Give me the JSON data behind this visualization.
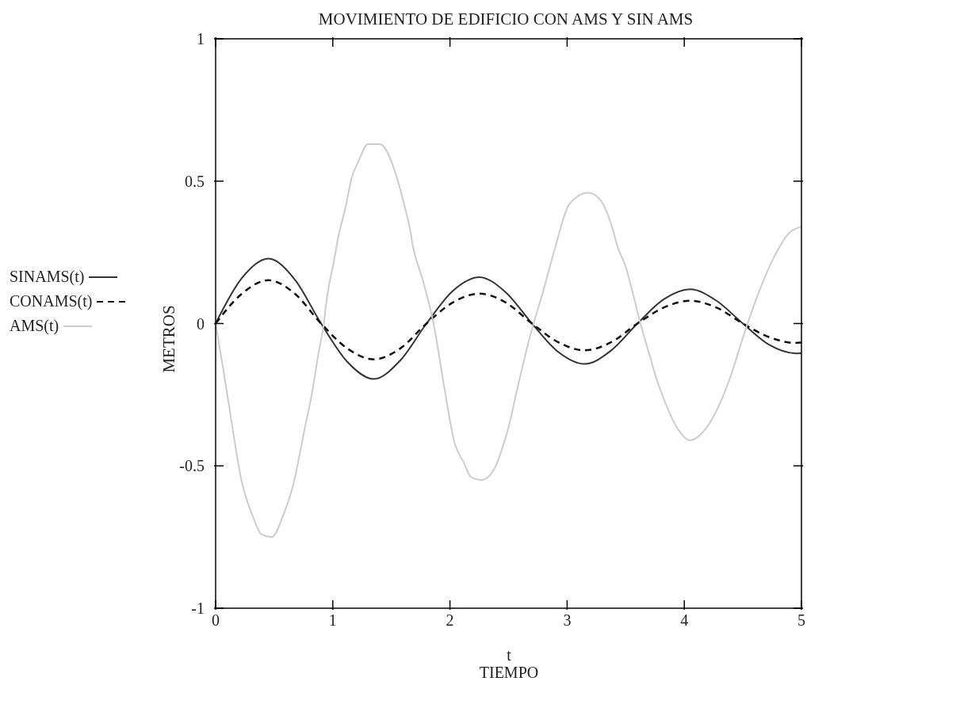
{
  "chart_data": {
    "type": "line",
    "title": "MOVIMIENTO DE EDIFICIO CON AMS Y SIN AMS",
    "xlabel": "t\nTIEMPO",
    "ylabel": "METROS",
    "xlim": [
      0,
      5
    ],
    "xticks": [
      0,
      1,
      2,
      3,
      4,
      5
    ],
    "ylim": [
      -1,
      1
    ],
    "yticks": [
      -1,
      -0.5,
      0,
      0.5,
      1
    ],
    "legend": "left",
    "series": [
      {
        "name": "SINAMS(t)",
        "color": "#333333",
        "line_style": "solid",
        "x": [
          0,
          0.225,
          0.45,
          0.675,
          0.9,
          1.125,
          1.35,
          1.575,
          1.8,
          2.025,
          2.25,
          2.475,
          2.7,
          2.925,
          3.15,
          3.375,
          3.6,
          3.825,
          4.05,
          4.275,
          4.5,
          4.725,
          4.95,
          5
        ],
        "values": [
          0,
          0.16,
          0.228,
          0.155,
          0,
          -0.135,
          -0.195,
          -0.13,
          0,
          0.115,
          0.163,
          0.11,
          0,
          -0.1,
          -0.142,
          -0.095,
          0,
          0.085,
          0.12,
          0.08,
          0,
          -0.075,
          -0.105,
          -0.104
        ]
      },
      {
        "name": "CONAMS(t)",
        "color": "#111111",
        "line_style": "dashed",
        "x": [
          0,
          0.225,
          0.45,
          0.675,
          0.9,
          1.125,
          1.35,
          1.575,
          1.8,
          2.025,
          2.25,
          2.475,
          2.7,
          2.925,
          3.15,
          3.375,
          3.6,
          3.825,
          4.05,
          4.275,
          4.5,
          4.725,
          4.95,
          5
        ],
        "values": [
          0,
          0.105,
          0.152,
          0.105,
          0,
          -0.088,
          -0.126,
          -0.088,
          0,
          0.074,
          0.105,
          0.074,
          0,
          -0.066,
          -0.094,
          -0.066,
          0,
          0.056,
          0.08,
          0.056,
          0,
          -0.048,
          -0.068,
          -0.067
        ]
      },
      {
        "name": "AMS(t)",
        "color": "#cccccc",
        "line_style": "solid",
        "x": [
          0,
          0.065,
          0.13,
          0.22,
          0.32,
          0.39,
          0.48,
          0.58,
          0.66,
          0.76,
          0.82,
          0.88,
          0.92,
          0.95,
          1.01,
          1.05,
          1.11,
          1.16,
          1.22,
          1.3,
          1.4,
          1.57,
          1.62,
          1.66,
          1.68,
          1.77,
          1.86,
          1.95,
          2.04,
          2.12,
          2.18,
          2.27,
          2.38,
          2.46,
          2.49,
          2.58,
          2.68,
          2.8,
          2.9,
          3.02,
          3.18,
          3.29,
          3.39,
          3.43,
          3.5,
          3.54,
          3.62,
          3.71,
          3.76,
          3.83,
          3.93,
          4.05,
          4.2,
          4.4,
          4.5,
          4.6,
          4.75,
          4.9,
          5
        ],
        "values": [
          0,
          -0.16,
          -0.33,
          -0.55,
          -0.68,
          -0.74,
          -0.75,
          -0.67,
          -0.57,
          -0.37,
          -0.25,
          -0.1,
          -0.01,
          0.09,
          0.22,
          0.31,
          0.41,
          0.51,
          0.57,
          0.63,
          0.63,
          0.48,
          0.4,
          0.33,
          0.28,
          0.15,
          0,
          -0.22,
          -0.42,
          -0.49,
          -0.54,
          -0.55,
          -0.51,
          -0.42,
          -0.38,
          -0.22,
          -0.05,
          0.12,
          0.27,
          0.42,
          0.46,
          0.43,
          0.33,
          0.27,
          0.2,
          0.14,
          0.01,
          -0.12,
          -0.19,
          -0.27,
          -0.36,
          -0.41,
          -0.36,
          -0.18,
          -0.05,
          0.07,
          0.22,
          0.32,
          0.34
        ]
      }
    ]
  }
}
